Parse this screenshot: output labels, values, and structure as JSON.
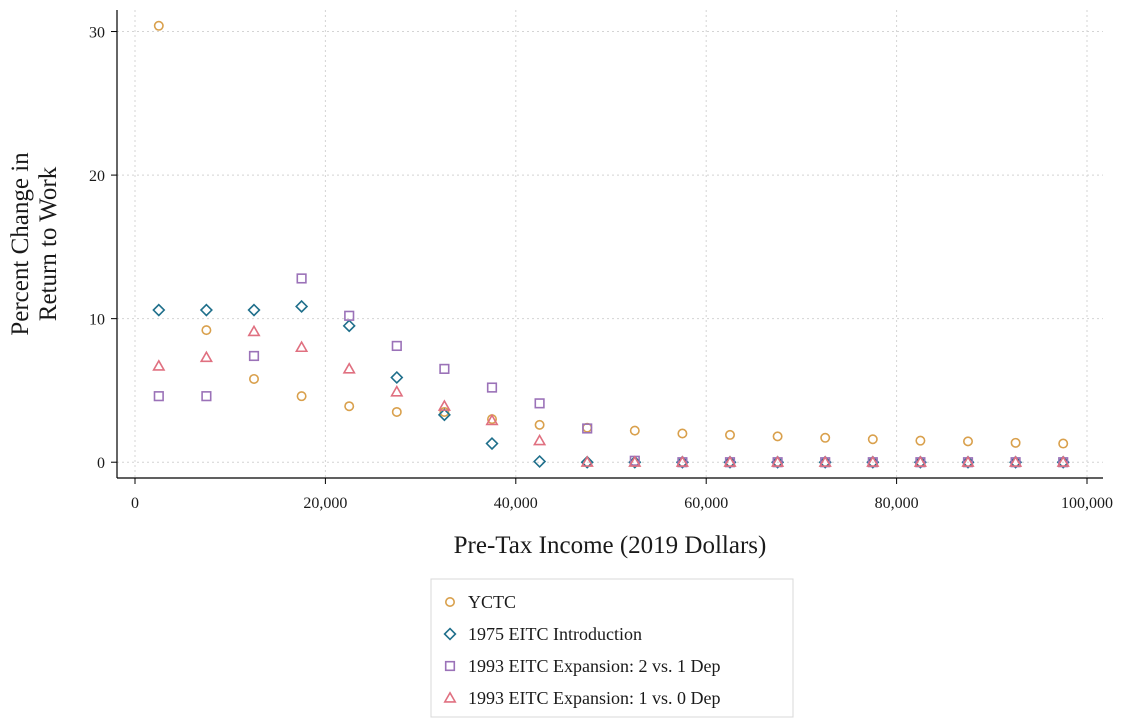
{
  "chart_data": {
    "type": "scatter",
    "xlabel": "Pre-Tax Income (2019 Dollars)",
    "ylabel": [
      "Percent Change in",
      "Return to Work"
    ],
    "xlim": [
      0,
      100000
    ],
    "ylim": [
      -1.1,
      31.5
    ],
    "xticks": [
      0,
      20000,
      40000,
      60000,
      80000,
      100000
    ],
    "xtick_labels": [
      "0",
      "20,000",
      "40,000",
      "60,000",
      "80,000",
      "100,000"
    ],
    "yticks": [
      0,
      10,
      20,
      30
    ],
    "ytick_labels": [
      "0",
      "10",
      "20",
      "30"
    ],
    "grid": true,
    "legend_position": "bottom",
    "x": [
      2500,
      7500,
      12500,
      17500,
      22500,
      27500,
      32500,
      37500,
      42500,
      47500,
      52500,
      57500,
      62500,
      67500,
      72500,
      77500,
      82500,
      87500,
      92500,
      97500
    ],
    "series": [
      {
        "name": "YCTC",
        "marker": "circle",
        "color": "#d9a04c",
        "values": [
          30.4,
          9.2,
          5.8,
          4.6,
          3.9,
          3.5,
          3.5,
          3.0,
          2.6,
          2.4,
          2.2,
          2.0,
          1.9,
          1.8,
          1.7,
          1.6,
          1.5,
          1.45,
          1.35,
          1.3
        ]
      },
      {
        "name": "1975 EITC Introduction",
        "marker": "diamond",
        "color": "#1f6f8b",
        "values": [
          10.6,
          10.6,
          10.6,
          10.85,
          9.5,
          5.9,
          3.3,
          1.3,
          0.05,
          0,
          0,
          0,
          0,
          0,
          0,
          0,
          0,
          0,
          0,
          0
        ]
      },
      {
        "name": "1993 EITC Expansion: 2 vs. 1 Dep",
        "marker": "square",
        "color": "#9b72b8",
        "values": [
          4.6,
          4.6,
          7.4,
          12.8,
          10.2,
          8.1,
          6.5,
          5.2,
          4.1,
          2.35,
          0.1,
          0,
          0,
          0,
          0,
          0,
          0,
          0,
          0,
          0
        ]
      },
      {
        "name": "1993 EITC Expansion: 1 vs. 0 Dep",
        "marker": "triangle",
        "color": "#e07080",
        "values": [
          6.7,
          7.3,
          9.1,
          8.0,
          6.5,
          4.9,
          3.9,
          2.9,
          1.5,
          0,
          0,
          0,
          0,
          0,
          0,
          0,
          0,
          0,
          0,
          0
        ]
      }
    ]
  }
}
